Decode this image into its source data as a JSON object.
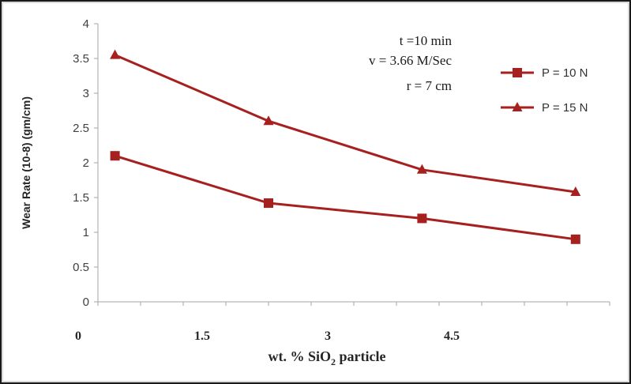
{
  "colors": {
    "series": "#a6201f",
    "axis": "#a6a6a6"
  },
  "chart_data": {
    "type": "line",
    "xlabel": {
      "prefix": "wt. % SiO",
      "subscript": "2",
      "suffix": " particle"
    },
    "ylabel": "Wear Rate (10-8) (gm/cm)",
    "xlim": [
      0,
      6
    ],
    "ylim": [
      0,
      4
    ],
    "x_ticks": [
      "0",
      "1.5",
      "3",
      "4.5"
    ],
    "y_ticks": [
      "0",
      "0.5",
      "1",
      "1.5",
      "2",
      "2.5",
      "3",
      "3.5",
      "4"
    ],
    "grid": false,
    "legend_position": "right",
    "annotations": [
      "t =10 min",
      "v = 3.66 M/Sec",
      "r = 7 cm"
    ],
    "series": [
      {
        "name": "P = 10 N",
        "marker": "square",
        "x": [
          0.2,
          2.0,
          3.8,
          5.6
        ],
        "y": [
          2.1,
          1.42,
          1.2,
          0.9
        ]
      },
      {
        "name": "P = 15 N",
        "marker": "triangle",
        "x": [
          0.2,
          2.0,
          3.8,
          5.6
        ],
        "y": [
          3.55,
          2.6,
          1.9,
          1.58
        ]
      }
    ]
  }
}
